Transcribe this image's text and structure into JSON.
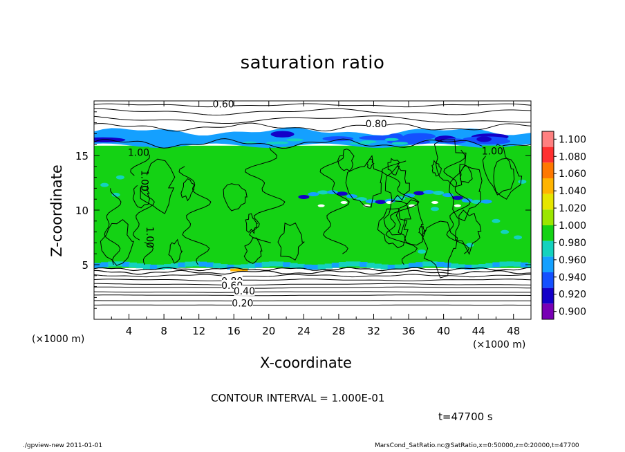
{
  "chart_data": {
    "type": "heatmap",
    "title": "saturation ratio",
    "xlabel": "X-coordinate",
    "ylabel": "Z-coordinate",
    "x_unit_label": "(×1000 m)",
    "x_unit_label_right": "(×1000 m)",
    "xlim": [
      0,
      50
    ],
    "ylim": [
      0,
      20
    ],
    "x_ticks": [
      "4",
      "8",
      "12",
      "16",
      "20",
      "24",
      "28",
      "32",
      "36",
      "40",
      "44",
      "48"
    ],
    "y_ticks": [
      "5",
      "10",
      "15"
    ],
    "colorbar": {
      "levels": [
        "1.100",
        "1.080",
        "1.060",
        "1.040",
        "1.020",
        "1.000",
        "0.980",
        "0.960",
        "0.940",
        "0.920",
        "0.900"
      ],
      "colors": [
        "#ff8080",
        "#ff3030",
        "#ff7800",
        "#ffb400",
        "#e6e600",
        "#9be600",
        "#14d214",
        "#14d2be",
        "#14a0ff",
        "#1450ff",
        "#1400c8",
        "#7800b4"
      ]
    },
    "regions": [
      {
        "z_range": [
          0,
          4.7
        ],
        "value": "below 0.90 (white)"
      },
      {
        "z_range": [
          4.7,
          15.9
        ],
        "value": "≈1.00 (green)"
      },
      {
        "z_range": [
          15.9,
          17.2
        ],
        "value": "0.90–0.96 (blue band)"
      },
      {
        "z_range": [
          17.2,
          20
        ],
        "value": "below 0.90 (white)"
      }
    ],
    "contour_labels": [
      {
        "text": "0.60",
        "x": 14.8,
        "z": 19.7
      },
      {
        "text": "0.80",
        "x": 32.3,
        "z": 17.9
      },
      {
        "text": "1.00",
        "x": 5.1,
        "z": 15.3
      },
      {
        "text": "1.00",
        "x": 45.6,
        "z": 15.4
      },
      {
        "text": "1.00",
        "x": 5.8,
        "z": 12.7
      },
      {
        "text": "1.00",
        "x": 6.4,
        "z": 7.5
      },
      {
        "text": "0.80",
        "x": 15.8,
        "z": 3.5
      },
      {
        "text": "0.60",
        "x": 15.8,
        "z": 3.1
      },
      {
        "text": "0.40",
        "x": 17.2,
        "z": 2.6
      },
      {
        "text": "0.20",
        "x": 17.0,
        "z": 1.5
      }
    ],
    "contour_interval_text": "CONTOUR INTERVAL = 1.000E-01"
  },
  "annotations": {
    "time": "t=47700 s"
  },
  "footer": {
    "left": "./gpview-new   2011-01-01",
    "right": "MarsCond_SatRatio.nc@SatRatio,x=0:50000,z=0:20000,t=47700"
  }
}
